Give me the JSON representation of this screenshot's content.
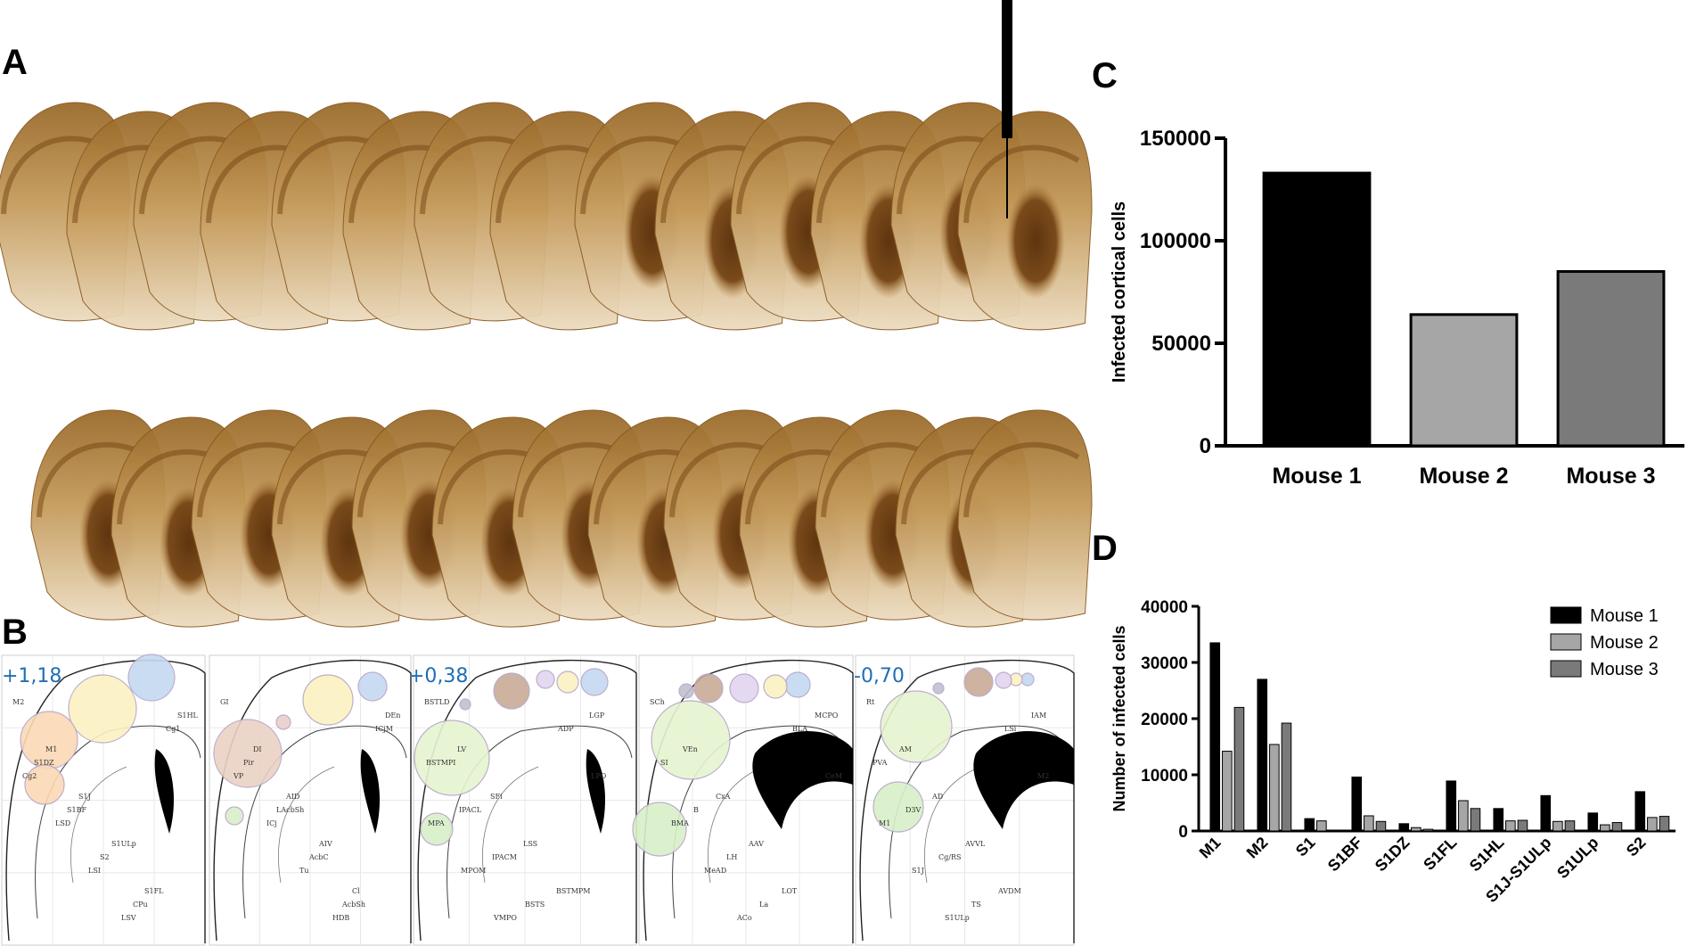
{
  "panels": {
    "A": "A",
    "B": "B",
    "C": "C",
    "D": "D"
  },
  "atlas_coordinates": [
    "+1,18",
    "+0,38",
    "-0,70"
  ],
  "atlas_region_labels": [
    "M2",
    "M1",
    "S1J",
    "S1ULp",
    "S1FL",
    "S1HL",
    "S1DZ",
    "S1BF",
    "S2",
    "CPu",
    "Cg1",
    "Cg2",
    "LSD",
    "LSI",
    "LSV",
    "GI",
    "DI",
    "AID",
    "AIV",
    "Cl",
    "DEn",
    "Pir",
    "LAcbSh",
    "AcbC",
    "AcbSh",
    "ICjM",
    "VP",
    "ICj",
    "Tu",
    "HDB",
    "BSTLD",
    "LV",
    "SFi",
    "LSS",
    "BSTMPM",
    "LGP",
    "BSTMPI",
    "IPACL",
    "IPACM",
    "BSTS",
    "ADP",
    "LPO",
    "MPA",
    "MPOM",
    "VMPO",
    "SCh",
    "VEn",
    "CxA",
    "AAV",
    "LOT",
    "MCPO",
    "SI",
    "B",
    "LH",
    "La",
    "BLA",
    "CeM",
    "BMA",
    "MeAD",
    "ACo",
    "Rt",
    "AM",
    "AD",
    "AVVL",
    "AVDM",
    "IAM",
    "PVA",
    "D3V",
    "Cg/RS",
    "TS",
    "LSi"
  ],
  "chart_data": [
    {
      "type": "bar",
      "panel": "C",
      "categories": [
        "Mouse 1",
        "Mouse 2",
        "Mouse 3"
      ],
      "values": [
        133000,
        64000,
        85000
      ],
      "colors": [
        "#000000",
        "#a6a6a6",
        "#7a7a7a"
      ],
      "title": "",
      "xlabel": "",
      "ylabel": "Infected cortical cells",
      "ylim": [
        0,
        150000
      ],
      "yticks": [
        0,
        50000,
        100000,
        150000
      ],
      "legend": false,
      "grid": false
    },
    {
      "type": "bar",
      "panel": "D",
      "categories": [
        "M1",
        "M2",
        "S1",
        "S1BF",
        "S1DZ",
        "S1FL",
        "S1HL",
        "S1J-S1ULp",
        "S1ULp",
        "S2"
      ],
      "series": [
        {
          "name": "Mouse 1",
          "color": "#000000",
          "values": [
            33500,
            27000,
            2200,
            9600,
            1300,
            8900,
            4000,
            6300,
            3200,
            7000
          ]
        },
        {
          "name": "Mouse 2",
          "color": "#a6a6a6",
          "values": [
            14200,
            15400,
            1800,
            2700,
            600,
            5400,
            1800,
            1700,
            1100,
            2400
          ]
        },
        {
          "name": "Mouse 3",
          "color": "#7a7a7a",
          "values": [
            22000,
            19200,
            0,
            1700,
            300,
            4000,
            1900,
            1800,
            1500,
            2600
          ]
        }
      ],
      "title": "",
      "xlabel": "",
      "ylabel": "Number of infected cells",
      "ylim": [
        0,
        40000
      ],
      "yticks": [
        0,
        10000,
        20000,
        30000,
        40000
      ],
      "legend": "top-right",
      "grid": false
    }
  ]
}
